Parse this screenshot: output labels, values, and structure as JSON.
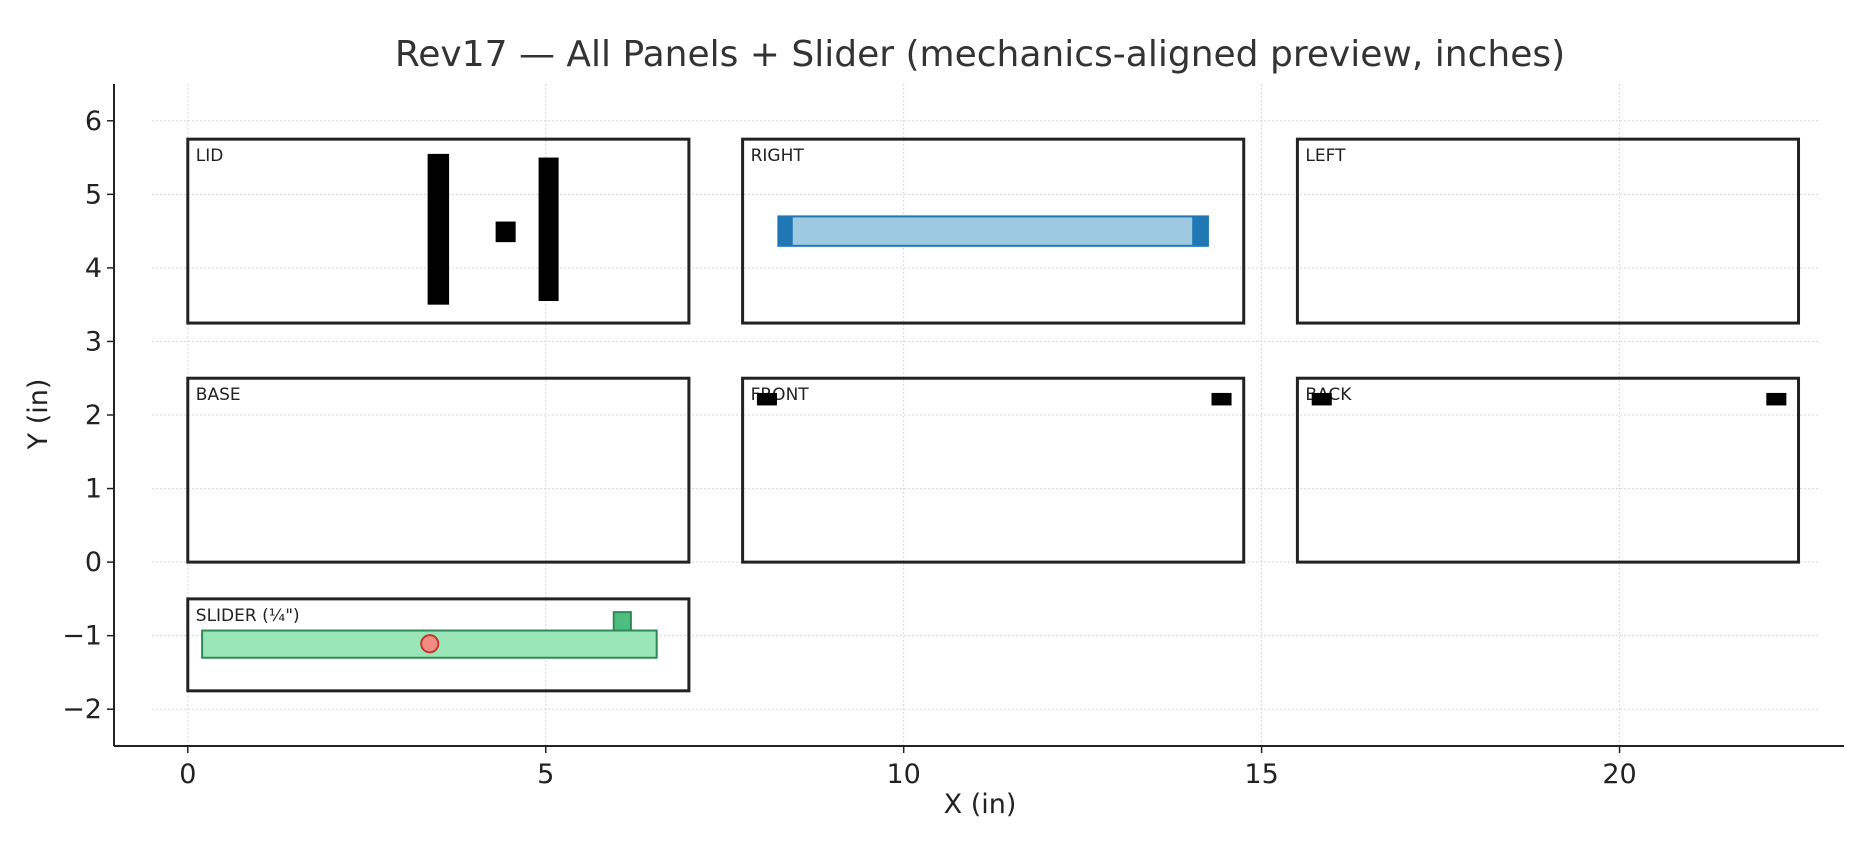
{
  "chart_data": {
    "type": "scatter",
    "title": "Rev17 — All Panels + Slider (mechanics-aligned preview, inches)",
    "xlabel": "X (in)",
    "ylabel": "Y (in)",
    "xlim": [
      -0.5,
      22.8
    ],
    "ylim": [
      -2.5,
      6.5
    ],
    "xticks": [
      0,
      5,
      10,
      15,
      20
    ],
    "yticks": [
      -2,
      -1,
      0,
      1,
      2,
      3,
      4,
      5,
      6
    ],
    "grid": true,
    "panels": [
      {
        "label": "LID",
        "x": 0,
        "y": 3.25,
        "w": 7,
        "h": 2.5
      },
      {
        "label": "RIGHT",
        "x": 7.75,
        "y": 3.25,
        "w": 7,
        "h": 2.5
      },
      {
        "label": "LEFT",
        "x": 15.5,
        "y": 3.25,
        "w": 7,
        "h": 2.5
      },
      {
        "label": "BASE",
        "x": 0,
        "y": 0,
        "w": 7,
        "h": 2.5
      },
      {
        "label": "FRONT",
        "x": 7.75,
        "y": 0,
        "w": 7,
        "h": 2.5
      },
      {
        "label": "BACK",
        "x": 15.5,
        "y": 0,
        "w": 7,
        "h": 2.5
      },
      {
        "label": "SLIDER (¼\")",
        "x": 0,
        "y": -1.75,
        "w": 7,
        "h": 1.25
      }
    ],
    "features": [
      {
        "name": "lid-slot-left",
        "shape": "rect",
        "x": 3.35,
        "y": 3.5,
        "w": 0.3,
        "h": 2.05,
        "fill": "#000000",
        "stroke": "none"
      },
      {
        "name": "lid-square-hole",
        "shape": "rect",
        "x": 4.3,
        "y": 4.35,
        "w": 0.28,
        "h": 0.28,
        "fill": "#000000",
        "stroke": "none"
      },
      {
        "name": "lid-slot-right",
        "shape": "rect",
        "x": 4.9,
        "y": 3.55,
        "w": 0.28,
        "h": 1.95,
        "fill": "#000000",
        "stroke": "none"
      },
      {
        "name": "right-channel-track",
        "shape": "rect",
        "x": 8.25,
        "y": 4.3,
        "w": 6.0,
        "h": 0.4,
        "fill": "#9ecae1",
        "stroke": "#1f77b4"
      },
      {
        "name": "right-channel-end-left",
        "shape": "rect",
        "x": 8.25,
        "y": 4.3,
        "w": 0.2,
        "h": 0.4,
        "fill": "#1f77b4",
        "stroke": "none"
      },
      {
        "name": "right-channel-end-right",
        "shape": "rect",
        "x": 14.03,
        "y": 4.3,
        "w": 0.22,
        "h": 0.4,
        "fill": "#1f77b4",
        "stroke": "none"
      },
      {
        "name": "front-hole-left",
        "shape": "rect",
        "x": 7.95,
        "y": 2.13,
        "w": 0.28,
        "h": 0.17,
        "fill": "#000000",
        "stroke": "none"
      },
      {
        "name": "front-hole-right",
        "shape": "rect",
        "x": 14.3,
        "y": 2.13,
        "w": 0.28,
        "h": 0.17,
        "fill": "#000000",
        "stroke": "none"
      },
      {
        "name": "back-hole-left",
        "shape": "rect",
        "x": 15.7,
        "y": 2.13,
        "w": 0.28,
        "h": 0.17,
        "fill": "#000000",
        "stroke": "none"
      },
      {
        "name": "back-hole-right",
        "shape": "rect",
        "x": 22.05,
        "y": 2.13,
        "w": 0.28,
        "h": 0.17,
        "fill": "#000000",
        "stroke": "none"
      },
      {
        "name": "slider-bar",
        "shape": "rect",
        "x": 0.2,
        "y": -1.3,
        "w": 6.35,
        "h": 0.37,
        "fill": "#9be6b8",
        "stroke": "#2e8b57"
      },
      {
        "name": "slider-tab",
        "shape": "rect",
        "x": 5.95,
        "y": -0.93,
        "w": 0.24,
        "h": 0.25,
        "fill": "#4cbf7f",
        "stroke": "#2e8b57"
      },
      {
        "name": "slider-knob",
        "shape": "circle",
        "cx": 3.38,
        "cy": -1.11,
        "r": 0.12,
        "fill": "#f28b82",
        "stroke": "#c0392b"
      }
    ]
  }
}
